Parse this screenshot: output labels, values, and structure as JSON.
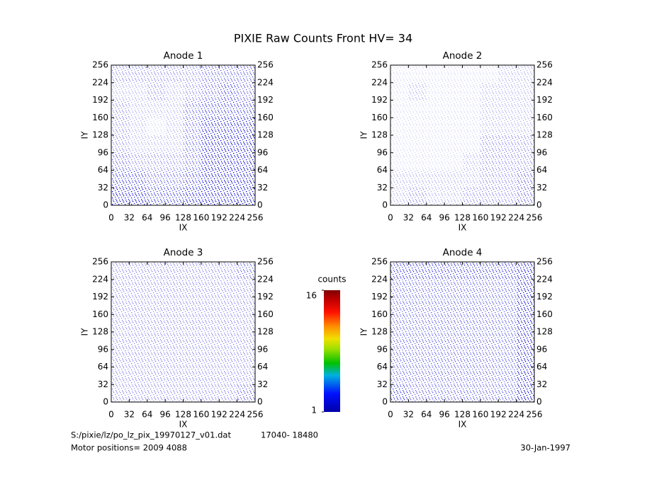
{
  "title": "PIXIE Raw Counts Front HV= 34",
  "footer": {
    "file": "S:/pixie/lz/po_lz_pix_19970127_v01.dat",
    "range": "17040-  18480",
    "motor": "Motor positions= 2009 4088",
    "date": "30-Jan-1997"
  },
  "colorbar": {
    "label": "counts",
    "lim": [
      1,
      16
    ],
    "ticks": [
      1,
      16
    ]
  },
  "chart_data": [
    {
      "type": "heatmap",
      "title": "Anode 1",
      "xlabel": "IX",
      "ylabel": "IY",
      "xlim": [
        0,
        256
      ],
      "ylim": [
        0,
        256
      ],
      "xticks": [
        0,
        32,
        64,
        96,
        128,
        160,
        192,
        224,
        256
      ],
      "yticks": [
        0,
        32,
        64,
        96,
        128,
        160,
        192,
        224,
        256
      ],
      "values": [
        [
          0.3,
          0.3,
          0.3,
          0.3,
          0.3,
          0.4,
          0.4,
          0.4
        ],
        [
          0.2,
          0.2,
          0.3,
          0.2,
          0.3,
          0.4,
          0.5,
          0.4
        ],
        [
          0.3,
          0.2,
          0.2,
          0.2,
          0.4,
          0.5,
          0.5,
          0.5
        ],
        [
          0.3,
          0.2,
          0.1,
          0.2,
          0.4,
          0.6,
          0.6,
          0.6
        ],
        [
          0.3,
          0.2,
          0.2,
          0.2,
          0.4,
          0.7,
          0.7,
          0.7
        ],
        [
          0.4,
          0.3,
          0.3,
          0.3,
          0.4,
          0.7,
          0.8,
          0.7
        ],
        [
          0.5,
          0.5,
          0.4,
          0.4,
          0.5,
          0.7,
          0.8,
          0.8
        ],
        [
          0.6,
          0.6,
          0.5,
          0.5,
          0.6,
          0.7,
          0.8,
          0.8
        ]
      ]
    },
    {
      "type": "heatmap",
      "title": "Anode 2",
      "xlabel": "IX",
      "ylabel": "IY",
      "xlim": [
        0,
        256
      ],
      "ylim": [
        0,
        256
      ],
      "xticks": [
        0,
        32,
        64,
        96,
        128,
        160,
        192,
        224,
        256
      ],
      "yticks": [
        0,
        32,
        64,
        96,
        128,
        160,
        192,
        224,
        256
      ],
      "values": [
        [
          0.1,
          0.1,
          0.1,
          0.1,
          0.1,
          0.1,
          0.2,
          0.2
        ],
        [
          0.1,
          0.2,
          0.1,
          0.1,
          0.1,
          0.2,
          0.2,
          0.2
        ],
        [
          0.1,
          0.1,
          0.1,
          0.1,
          0.1,
          0.2,
          0.2,
          0.2
        ],
        [
          0.1,
          0.1,
          0.1,
          0.1,
          0.1,
          0.2,
          0.2,
          0.2
        ],
        [
          0.1,
          0.1,
          0.1,
          0.1,
          0.1,
          0.3,
          0.3,
          0.3
        ],
        [
          0.1,
          0.1,
          0.1,
          0.1,
          0.2,
          0.3,
          0.3,
          0.3
        ],
        [
          0.2,
          0.2,
          0.2,
          0.2,
          0.2,
          0.3,
          0.3,
          0.4
        ],
        [
          0.2,
          0.3,
          0.2,
          0.2,
          0.3,
          0.3,
          0.3,
          0.4
        ]
      ]
    },
    {
      "type": "heatmap",
      "title": "Anode 3",
      "xlabel": "IX",
      "ylabel": "IY",
      "xlim": [
        0,
        256
      ],
      "ylim": [
        0,
        256
      ],
      "xticks": [
        0,
        32,
        64,
        96,
        128,
        160,
        192,
        224,
        256
      ],
      "yticks": [
        0,
        32,
        64,
        96,
        128,
        160,
        192,
        224,
        256
      ],
      "values": [
        [
          0.3,
          0.3,
          0.3,
          0.3,
          0.3,
          0.3,
          0.3,
          0.4
        ],
        [
          0.3,
          0.3,
          0.3,
          0.3,
          0.3,
          0.3,
          0.3,
          0.3
        ],
        [
          0.3,
          0.3,
          0.3,
          0.3,
          0.3,
          0.3,
          0.3,
          0.3
        ],
        [
          0.3,
          0.3,
          0.3,
          0.3,
          0.3,
          0.3,
          0.3,
          0.3
        ],
        [
          0.3,
          0.3,
          0.3,
          0.3,
          0.3,
          0.3,
          0.3,
          0.3
        ],
        [
          0.3,
          0.3,
          0.3,
          0.3,
          0.3,
          0.3,
          0.3,
          0.3
        ],
        [
          0.3,
          0.3,
          0.3,
          0.3,
          0.3,
          0.3,
          0.3,
          0.3
        ],
        [
          0.3,
          0.3,
          0.3,
          0.3,
          0.3,
          0.3,
          0.3,
          0.4
        ]
      ]
    },
    {
      "type": "heatmap",
      "title": "Anode 4",
      "xlabel": "IX",
      "ylabel": "IY",
      "xlim": [
        0,
        256
      ],
      "ylim": [
        0,
        256
      ],
      "xticks": [
        0,
        32,
        64,
        96,
        128,
        160,
        192,
        224,
        256
      ],
      "yticks": [
        0,
        32,
        64,
        96,
        128,
        160,
        192,
        224,
        256
      ],
      "values": [
        [
          0.5,
          0.5,
          0.5,
          0.5,
          0.5,
          0.5,
          0.5,
          0.6
        ],
        [
          0.4,
          0.4,
          0.4,
          0.4,
          0.4,
          0.4,
          0.4,
          0.6
        ],
        [
          0.4,
          0.4,
          0.4,
          0.4,
          0.4,
          0.4,
          0.4,
          0.6
        ],
        [
          0.4,
          0.4,
          0.4,
          0.4,
          0.4,
          0.4,
          0.4,
          0.6
        ],
        [
          0.4,
          0.4,
          0.4,
          0.4,
          0.4,
          0.4,
          0.4,
          0.6
        ],
        [
          0.4,
          0.4,
          0.4,
          0.4,
          0.4,
          0.4,
          0.4,
          0.6
        ],
        [
          0.4,
          0.4,
          0.4,
          0.4,
          0.4,
          0.4,
          0.4,
          0.6
        ],
        [
          0.5,
          0.4,
          0.4,
          0.4,
          0.4,
          0.4,
          0.4,
          0.7
        ]
      ]
    }
  ]
}
